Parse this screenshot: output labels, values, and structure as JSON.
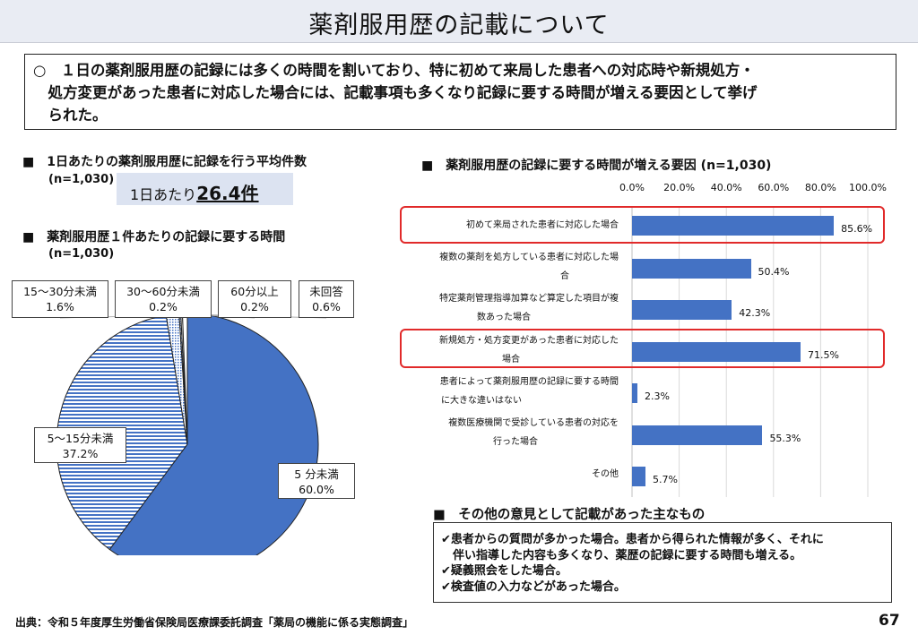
{
  "title": "薬剤服用歴の記載について",
  "summary": {
    "line1": "○　１日の薬剤服用歴の記録には多くの時間を割いており、特に初めて来局した患者への対応時や新規処方・",
    "line2": "　処方変更があった患者に対応した場合には、記載事項も多くなり記録に要する時間が増える要因として挙げ",
    "line3": "　られた。"
  },
  "avg_section": {
    "heading": "■　1日あたりの薬剤服用歴に記録を行う平均件数",
    "n": "(n=1,030)",
    "avg_prefix": "1日あたり",
    "avg_value": "26.4件"
  },
  "pie_section": {
    "heading": "■　薬剤服用歴１件あたりの記録に要する時間",
    "n": "(n=1,030)",
    "labels": [
      {
        "name": "15〜30分未満",
        "pct": "1.6%"
      },
      {
        "name": "30〜60分未満",
        "pct": "0.2%"
      },
      {
        "name": "60分以上",
        "pct": "0.2%"
      },
      {
        "name": "未回答",
        "pct": "0.6%"
      },
      {
        "name": "5〜15分未満",
        "pct": "37.2%"
      },
      {
        "name": "5 分未満",
        "pct": "60.0%"
      }
    ]
  },
  "bar_section": {
    "heading": "■　薬剤服用歴の記録に要する時間が増える要因 (n=1,030)",
    "ticks": [
      "0.0%",
      "20.0%",
      "40.0%",
      "60.0%",
      "80.0%",
      "100.0%"
    ],
    "labels": [
      {
        "l1": "初めて来局された患者に対応した場合",
        "l2": ""
      },
      {
        "l1": "複数の薬剤を処方している患者に対応した場",
        "l2": "合"
      },
      {
        "l1": "特定薬剤管理指導加算など算定した項目が複",
        "l2": "数あった場合"
      },
      {
        "l1": "新規処方・処方変更があった患者に対応した",
        "l2": "場合"
      },
      {
        "l1": "患者によって薬剤服用歴の記録に要する時間",
        "l2": "に大きな違いはない"
      },
      {
        "l1": "複数医療機関で受診している患者の対応を",
        "l2": "行った場合"
      },
      {
        "l1": "その他",
        "l2": ""
      }
    ],
    "value_labels": [
      "85.6%",
      "50.4%",
      "42.3%",
      "71.5%",
      "2.3%",
      "55.3%",
      "5.7%"
    ]
  },
  "chart_data": [
    {
      "type": "pie",
      "title": "薬剤服用歴１件あたりの記録に要する時間",
      "categories": [
        "5 分未満",
        "5〜15分未満",
        "15〜30分未満",
        "30〜60分未満",
        "60分以上",
        "未回答"
      ],
      "values": [
        60.0,
        37.2,
        1.6,
        0.2,
        0.2,
        0.6
      ],
      "colors": [
        "#4472c4",
        "#4472c4",
        "#4472c4",
        "#4472c4",
        "#4472c4",
        "#4472c4"
      ]
    },
    {
      "type": "bar",
      "orientation": "horizontal",
      "title": "薬剤服用歴の記録に要する時間が増える要因 (n=1,030)",
      "categories": [
        "初めて来局された患者に対応した場合",
        "複数の薬剤を処方している患者に対応した場合",
        "特定薬剤管理指導加算など算定した項目が複数あった場合",
        "新規処方・処方変更があった患者に対応した場合",
        "患者によって薬剤服用歴の記録に要する時間に大きな違いはない",
        "複数医療機関で受診している患者の対応を行った場合",
        "その他"
      ],
      "values": [
        85.6,
        50.4,
        42.3,
        71.5,
        2.3,
        55.3,
        5.7
      ],
      "xlim": [
        0,
        100
      ],
      "grid": true,
      "highlighted": [
        "初めて来局された患者に対応した場合",
        "新規処方・処方変更があった患者に対応した場合"
      ],
      "bar_color": "#4472c4",
      "highlight_color": "#e12a2a"
    }
  ],
  "other_section": {
    "heading": "■　その他の意見として記載があった主なもの",
    "lines": [
      "✔患者からの質問が多かった場合。患者から得られた情報が多く、それに",
      "　伴い指導した内容も多くなり、薬歴の記録に要する時間も増える。",
      "✔疑義照会をした場合。",
      "✔検査値の入力などがあった場合。"
    ]
  },
  "source": "出典：令和５年度厚生労働省保険局医療課委託調査「薬局の機能に係る実態調査」",
  "page_number": "67"
}
